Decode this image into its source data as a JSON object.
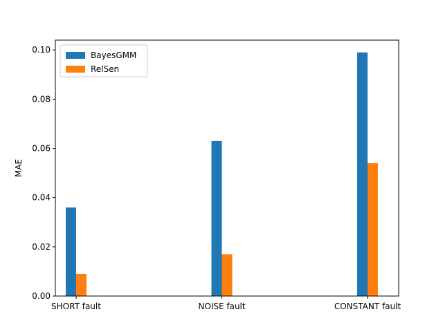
{
  "chart_data": {
    "type": "bar",
    "categories": [
      "SHORT fault",
      "NOISE fault",
      "CONSTANT fault"
    ],
    "series": [
      {
        "name": "BayesGMM",
        "values": [
          0.036,
          0.063,
          0.099
        ],
        "color": "#1f77b4"
      },
      {
        "name": "RelSen",
        "values": [
          0.009,
          0.017,
          0.054
        ],
        "color": "#ff7f0e"
      }
    ],
    "ylabel": "MAE",
    "ylim": [
      0,
      0.104
    ],
    "yticks": [
      0.0,
      0.02,
      0.04,
      0.06,
      0.08,
      0.1
    ],
    "ytick_labels": [
      "0.00",
      "0.02",
      "0.04",
      "0.06",
      "0.08",
      "0.10"
    ],
    "legend": "top-left",
    "grid": false
  }
}
